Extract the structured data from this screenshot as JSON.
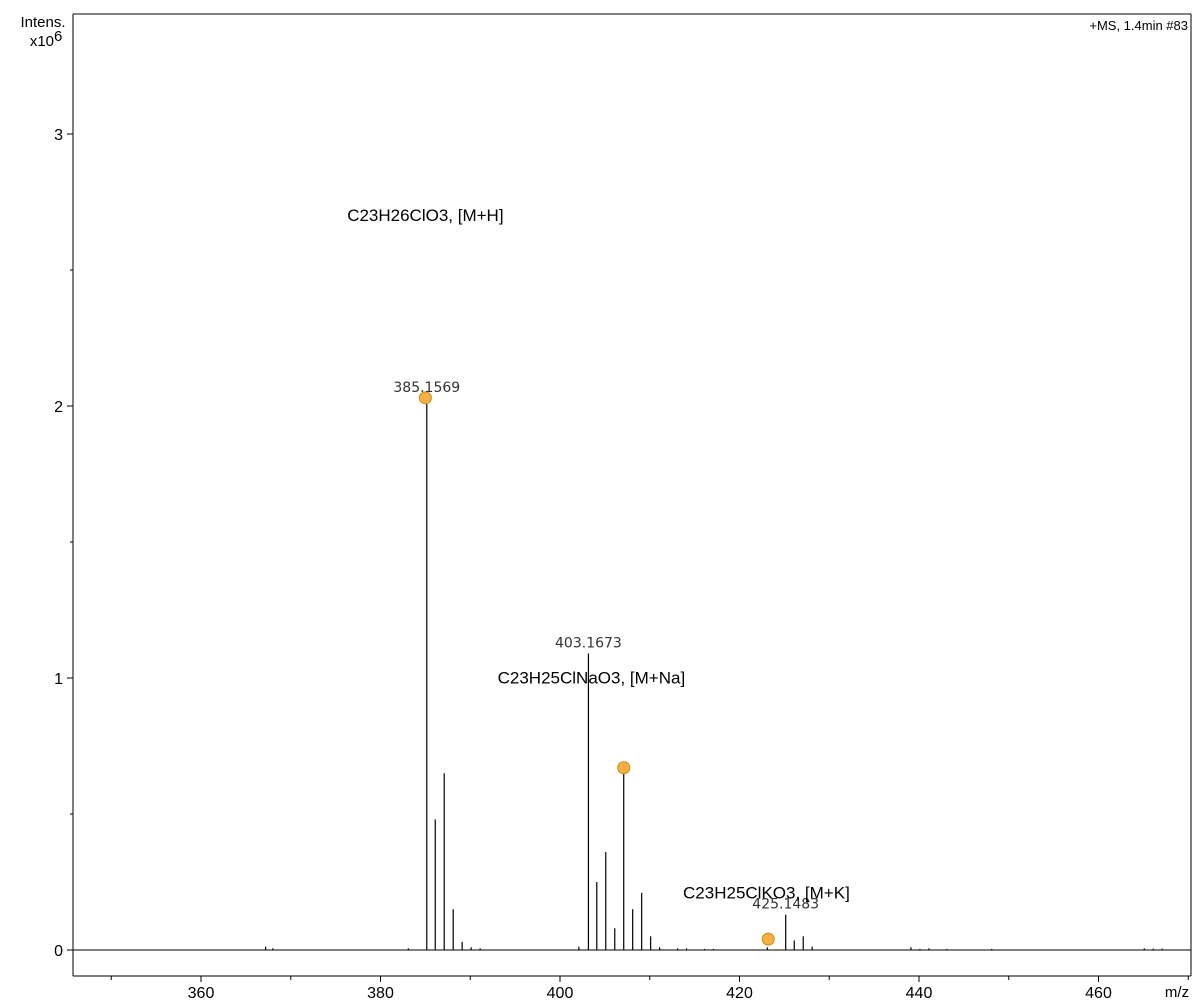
{
  "chart_data": {
    "type": "mass-spectrum",
    "scan_info": "+MS, 1.4min #83",
    "ylabel_line1": "Intens.",
    "ylabel_base": "x10",
    "ylabel_exp": "6",
    "xlabel": "m/z",
    "xlim": [
      345,
      470
    ],
    "ylim": [
      -0.1,
      3.45
    ],
    "x_ticks": [
      360,
      380,
      400,
      420,
      440,
      460
    ],
    "y_ticks": [
      0,
      1,
      2,
      3
    ],
    "colors": {
      "axis": "#000000",
      "peak": "#000000",
      "marker_fill": "#f5b041",
      "marker_stroke": "#c98a1a"
    },
    "peaks": [
      {
        "mz": 367.2,
        "intensity": 0.012
      },
      {
        "mz": 368.0,
        "intensity": 0.006
      },
      {
        "mz": 383.1,
        "intensity": 0.006
      },
      {
        "mz": 385.1569,
        "intensity": 2.03
      },
      {
        "mz": 386.1,
        "intensity": 0.48
      },
      {
        "mz": 387.1,
        "intensity": 0.65
      },
      {
        "mz": 388.1,
        "intensity": 0.15
      },
      {
        "mz": 389.1,
        "intensity": 0.03
      },
      {
        "mz": 390.1,
        "intensity": 0.01
      },
      {
        "mz": 391.1,
        "intensity": 0.006
      },
      {
        "mz": 402.1,
        "intensity": 0.012
      },
      {
        "mz": 403.1673,
        "intensity": 1.09
      },
      {
        "mz": 404.1,
        "intensity": 0.25
      },
      {
        "mz": 405.1,
        "intensity": 0.36
      },
      {
        "mz": 406.1,
        "intensity": 0.08
      },
      {
        "mz": 407.1,
        "intensity": 0.67
      },
      {
        "mz": 408.1,
        "intensity": 0.15
      },
      {
        "mz": 409.1,
        "intensity": 0.21
      },
      {
        "mz": 410.1,
        "intensity": 0.05
      },
      {
        "mz": 411.1,
        "intensity": 0.01
      },
      {
        "mz": 413.1,
        "intensity": 0.006
      },
      {
        "mz": 414.1,
        "intensity": 0.006
      },
      {
        "mz": 416.1,
        "intensity": 0.004
      },
      {
        "mz": 417.1,
        "intensity": 0.004
      },
      {
        "mz": 423.1,
        "intensity": 0.01
      },
      {
        "mz": 425.1483,
        "intensity": 0.13
      },
      {
        "mz": 426.1,
        "intensity": 0.035
      },
      {
        "mz": 427.1,
        "intensity": 0.05
      },
      {
        "mz": 428.1,
        "intensity": 0.012
      },
      {
        "mz": 439.1,
        "intensity": 0.01
      },
      {
        "mz": 440.1,
        "intensity": 0.004
      },
      {
        "mz": 441.1,
        "intensity": 0.006
      },
      {
        "mz": 443.1,
        "intensity": 0.004
      },
      {
        "mz": 448.1,
        "intensity": 0.004
      },
      {
        "mz": 465.1,
        "intensity": 0.006
      },
      {
        "mz": 466.1,
        "intensity": 0.005
      },
      {
        "mz": 467.1,
        "intensity": 0.005
      }
    ],
    "peak_labels": [
      {
        "mz": 385.1569,
        "intensity": 2.03,
        "text": "385.1569"
      },
      {
        "mz": 403.1673,
        "intensity": 1.09,
        "text": "403.1673"
      },
      {
        "mz": 425.1483,
        "intensity": 0.13,
        "text": "425.1483"
      }
    ],
    "markers": [
      {
        "mz": 385.0,
        "intensity": 2.03
      },
      {
        "mz": 407.1,
        "intensity": 0.67
      },
      {
        "mz": 423.2,
        "intensity": 0.04
      }
    ],
    "formula_annotations": [
      {
        "text": "C23H26ClO3, [M+H]",
        "mz": 385.0,
        "intensity": 2.68
      },
      {
        "text": "C23H25ClNaO3, [M+Na]",
        "mz": 403.5,
        "intensity": 0.98
      },
      {
        "text": "C23H25ClKO3, [M+K]",
        "mz": 423.0,
        "intensity": 0.19
      }
    ]
  }
}
